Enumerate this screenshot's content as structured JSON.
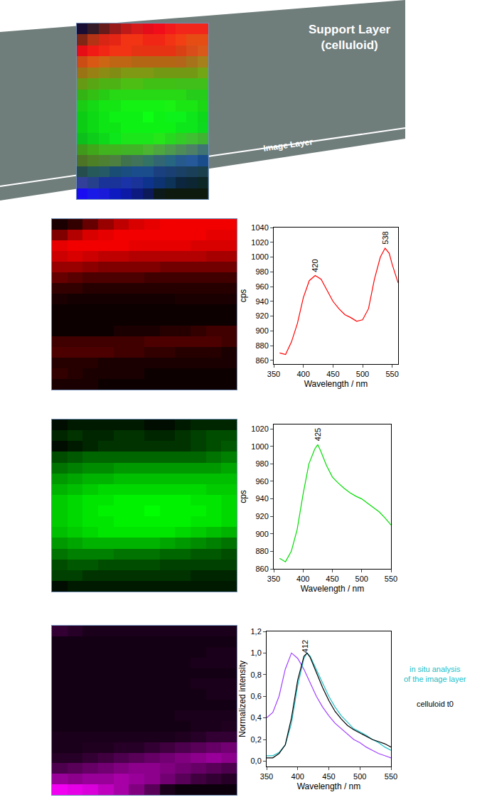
{
  "chart_data": [
    {
      "type": "rgb_overlay",
      "annotations": [
        "Support Layer\n(celluloid)",
        "Image Layer"
      ]
    },
    {
      "type": "heatmap",
      "color": "#ff0000",
      "zlim": [
        0,
        100
      ],
      "tick_labels": false,
      "cells": [
        [
          10,
          20,
          40,
          60,
          75,
          85,
          90,
          95,
          95,
          95,
          95,
          95
        ],
        [
          50,
          70,
          85,
          90,
          95,
          95,
          95,
          95,
          95,
          95,
          90,
          90
        ],
        [
          90,
          95,
          95,
          95,
          95,
          90,
          90,
          90,
          90,
          85,
          85,
          85
        ],
        [
          80,
          85,
          80,
          75,
          75,
          70,
          70,
          70,
          70,
          70,
          65,
          65
        ],
        [
          60,
          60,
          55,
          50,
          50,
          50,
          50,
          45,
          45,
          45,
          45,
          45
        ],
        [
          40,
          35,
          30,
          30,
          30,
          30,
          25,
          25,
          25,
          25,
          25,
          25
        ],
        [
          20,
          20,
          15,
          15,
          15,
          15,
          15,
          15,
          15,
          15,
          15,
          15
        ],
        [
          10,
          8,
          8,
          8,
          8,
          8,
          8,
          8,
          10,
          10,
          10,
          10
        ],
        [
          5,
          5,
          5,
          5,
          5,
          5,
          5,
          5,
          5,
          5,
          5,
          5
        ],
        [
          5,
          5,
          5,
          5,
          5,
          5,
          5,
          5,
          5,
          5,
          5,
          5
        ],
        [
          5,
          5,
          5,
          5,
          10,
          10,
          10,
          15,
          15,
          20,
          25,
          25
        ],
        [
          25,
          25,
          25,
          25,
          25,
          25,
          30,
          30,
          30,
          30,
          30,
          25
        ],
        [
          30,
          30,
          30,
          30,
          25,
          25,
          20,
          20,
          15,
          15,
          15,
          10
        ],
        [
          15,
          15,
          15,
          10,
          10,
          10,
          10,
          10,
          10,
          10,
          10,
          10
        ],
        [
          20,
          15,
          10,
          10,
          10,
          10,
          5,
          5,
          5,
          5,
          5,
          5
        ],
        [
          10,
          10,
          10,
          5,
          5,
          5,
          5,
          5,
          5,
          5,
          5,
          5
        ]
      ]
    },
    {
      "type": "line",
      "xlabel": "Wavelength / nm",
      "ylabel": "cps",
      "xlim": [
        350,
        560
      ],
      "xticks": [
        350,
        400,
        450,
        500,
        550
      ],
      "ylim": [
        855,
        1040
      ],
      "yticks": [
        860,
        880,
        900,
        920,
        940,
        960,
        980,
        1000,
        1020,
        1040
      ],
      "annotations": [
        {
          "x": 420,
          "text": "420"
        },
        {
          "x": 538,
          "text": "538"
        }
      ],
      "series": [
        {
          "color": "#ff0000",
          "x": [
            360,
            370,
            380,
            390,
            400,
            410,
            420,
            430,
            440,
            450,
            460,
            470,
            480,
            490,
            500,
            510,
            520,
            530,
            538,
            545,
            550,
            560
          ],
          "values": [
            870,
            868,
            885,
            910,
            945,
            968,
            975,
            970,
            955,
            940,
            930,
            922,
            918,
            913,
            915,
            930,
            970,
            1000,
            1012,
            1005,
            990,
            965
          ]
        }
      ]
    },
    {
      "type": "heatmap",
      "color": "#00ff00",
      "zlim": [
        0,
        100
      ],
      "tick_labels": false,
      "cells": [
        [
          5,
          10,
          10,
          10,
          10,
          10,
          5,
          5,
          10,
          15,
          15,
          15
        ],
        [
          15,
          20,
          15,
          15,
          20,
          20,
          15,
          15,
          20,
          25,
          30,
          30
        ],
        [
          5,
          10,
          15,
          20,
          20,
          20,
          20,
          20,
          20,
          25,
          30,
          35
        ],
        [
          30,
          35,
          40,
          40,
          40,
          40,
          40,
          40,
          40,
          40,
          45,
          50
        ],
        [
          45,
          50,
          55,
          55,
          60,
          60,
          60,
          60,
          60,
          60,
          60,
          65
        ],
        [
          60,
          65,
          70,
          70,
          75,
          75,
          75,
          75,
          75,
          75,
          75,
          75
        ],
        [
          70,
          75,
          80,
          85,
          85,
          85,
          85,
          85,
          85,
          85,
          80,
          80
        ],
        [
          80,
          85,
          90,
          90,
          95,
          95,
          95,
          95,
          95,
          90,
          90,
          85
        ],
        [
          80,
          85,
          90,
          95,
          95,
          95,
          100,
          95,
          95,
          95,
          90,
          85
        ],
        [
          80,
          85,
          90,
          90,
          95,
          95,
          95,
          95,
          95,
          90,
          90,
          85
        ],
        [
          75,
          80,
          85,
          90,
          90,
          90,
          90,
          90,
          85,
          80,
          75,
          70
        ],
        [
          60,
          65,
          70,
          70,
          70,
          70,
          70,
          65,
          60,
          55,
          50,
          45
        ],
        [
          45,
          50,
          50,
          50,
          45,
          45,
          45,
          40,
          40,
          35,
          35,
          30
        ],
        [
          30,
          35,
          35,
          30,
          30,
          30,
          30,
          25,
          25,
          25,
          25,
          25
        ],
        [
          25,
          25,
          20,
          20,
          20,
          20,
          20,
          20,
          20,
          15,
          15,
          15
        ],
        [
          5,
          10,
          10,
          10,
          10,
          10,
          10,
          10,
          10,
          10,
          10,
          10
        ]
      ]
    },
    {
      "type": "line",
      "xlabel": "Wavelength / nm",
      "ylabel": "cps",
      "xlim": [
        350,
        550
      ],
      "xticks": [
        350,
        400,
        450,
        500,
        550
      ],
      "ylim": [
        860,
        1025
      ],
      "yticks": [
        860,
        880,
        900,
        920,
        940,
        960,
        980,
        1000,
        1020
      ],
      "annotations": [
        {
          "x": 425,
          "text": "425"
        }
      ],
      "series": [
        {
          "color": "#00dd00",
          "x": [
            360,
            370,
            380,
            390,
            400,
            410,
            420,
            425,
            430,
            440,
            450,
            460,
            470,
            480,
            490,
            500,
            510,
            520,
            530,
            540,
            550
          ],
          "values": [
            872,
            868,
            880,
            905,
            945,
            980,
            997,
            1002,
            995,
            978,
            965,
            958,
            952,
            947,
            943,
            940,
            935,
            930,
            925,
            918,
            910
          ]
        }
      ]
    },
    {
      "type": "heatmap",
      "color": "#ff00ff",
      "zlim": [
        0,
        100
      ],
      "tick_labels": false,
      "cells": [
        [
          20,
          15,
          10,
          10,
          10,
          10,
          10,
          10,
          10,
          10,
          10,
          10
        ],
        [
          8,
          8,
          8,
          8,
          8,
          8,
          8,
          8,
          8,
          8,
          8,
          8
        ],
        [
          8,
          8,
          8,
          8,
          8,
          8,
          8,
          8,
          8,
          8,
          10,
          10
        ],
        [
          8,
          8,
          8,
          8,
          8,
          8,
          8,
          8,
          8,
          10,
          10,
          10
        ],
        [
          8,
          8,
          8,
          8,
          8,
          8,
          8,
          8,
          8,
          8,
          8,
          8
        ],
        [
          8,
          8,
          8,
          8,
          8,
          8,
          8,
          8,
          8,
          10,
          10,
          10
        ],
        [
          8,
          8,
          8,
          8,
          8,
          8,
          8,
          8,
          8,
          8,
          10,
          10
        ],
        [
          8,
          8,
          8,
          8,
          8,
          8,
          8,
          8,
          8,
          8,
          8,
          8
        ],
        [
          8,
          8,
          8,
          8,
          8,
          8,
          8,
          8,
          10,
          10,
          10,
          10
        ],
        [
          8,
          8,
          8,
          8,
          8,
          8,
          8,
          8,
          8,
          10,
          10,
          12
        ],
        [
          10,
          10,
          10,
          10,
          10,
          10,
          10,
          10,
          12,
          15,
          20,
          20
        ],
        [
          10,
          10,
          12,
          12,
          15,
          15,
          20,
          25,
          30,
          35,
          40,
          45
        ],
        [
          15,
          15,
          20,
          25,
          30,
          35,
          40,
          45,
          50,
          55,
          60,
          55
        ],
        [
          30,
          35,
          40,
          45,
          50,
          55,
          55,
          50,
          45,
          40,
          35,
          30
        ],
        [
          60,
          55,
          60,
          60,
          65,
          60,
          55,
          45,
          35,
          25,
          20,
          15
        ],
        [
          95,
          90,
          85,
          75,
          65,
          50,
          35,
          10,
          5,
          5,
          5,
          5
        ]
      ]
    },
    {
      "type": "line",
      "xlabel": "Wavelength / nm",
      "ylabel": "Normalized intensity",
      "xlim": [
        350,
        550
      ],
      "xticks": [
        350,
        400,
        450,
        500,
        550
      ],
      "ylim": [
        -0.05,
        1.2
      ],
      "yticks": [
        {
          "value": 0,
          "label": "0,0"
        },
        {
          "value": 0.2,
          "label": "0,2"
        },
        {
          "value": 0.4,
          "label": "0,4"
        },
        {
          "value": 0.6,
          "label": "0,6"
        },
        {
          "value": 0.8,
          "label": "0,8"
        },
        {
          "value": 1,
          "label": "1,0"
        },
        {
          "value": 1.2,
          "label": "1,2"
        }
      ],
      "annotations": [
        {
          "x": 412,
          "text": "412"
        }
      ],
      "series": [
        {
          "color": "#a040ff",
          "x": [
            350,
            360,
            370,
            380,
            390,
            400,
            410,
            420,
            430,
            440,
            450,
            460,
            470,
            480,
            490,
            500,
            510,
            520,
            530,
            540,
            550
          ],
          "values": [
            0.4,
            0.45,
            0.6,
            0.85,
            1.0,
            0.95,
            0.85,
            0.72,
            0.6,
            0.5,
            0.42,
            0.35,
            0.3,
            0.25,
            0.2,
            0.17,
            0.13,
            0.1,
            0.07,
            0.05,
            0.03
          ]
        },
        {
          "name": "in situ analysis\nof the image layer",
          "color": "#20c0c8",
          "x": [
            350,
            360,
            370,
            380,
            390,
            400,
            410,
            415,
            420,
            430,
            440,
            450,
            460,
            470,
            480,
            490,
            500,
            510,
            520,
            530,
            540,
            550
          ],
          "values": [
            0.05,
            0.05,
            0.08,
            0.15,
            0.35,
            0.7,
            0.95,
            1.0,
            0.97,
            0.85,
            0.72,
            0.6,
            0.5,
            0.42,
            0.36,
            0.3,
            0.27,
            0.24,
            0.2,
            0.17,
            0.13,
            0.1
          ]
        },
        {
          "name": "celluloid t0",
          "color": "#000000",
          "x": [
            350,
            360,
            370,
            380,
            390,
            400,
            410,
            415,
            420,
            430,
            440,
            450,
            460,
            470,
            480,
            490,
            500,
            510,
            520,
            530,
            540,
            550
          ],
          "values": [
            0.03,
            0.03,
            0.07,
            0.15,
            0.4,
            0.75,
            0.97,
            1.0,
            0.96,
            0.82,
            0.68,
            0.56,
            0.46,
            0.39,
            0.33,
            0.29,
            0.26,
            0.23,
            0.2,
            0.18,
            0.16,
            0.13
          ]
        }
      ]
    }
  ]
}
